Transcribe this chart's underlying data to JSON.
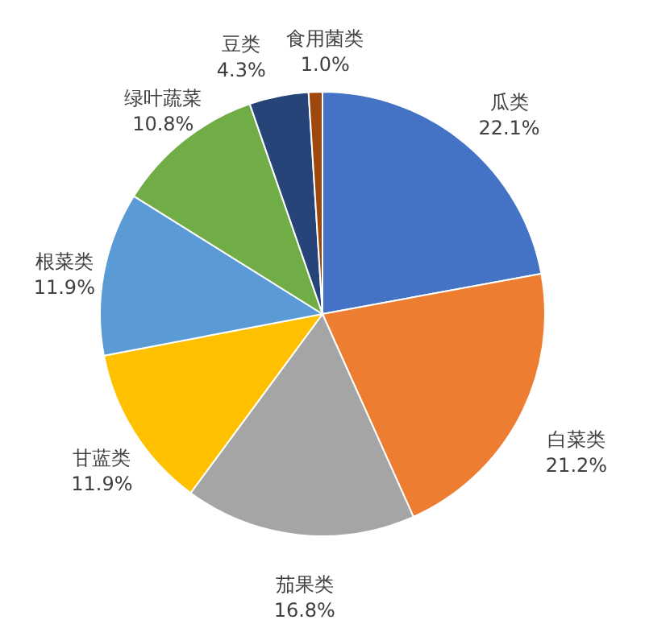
{
  "chart_data": {
    "type": "pie",
    "categories": [
      "瓜类",
      "白菜类",
      "茄果类",
      "甘蓝类",
      "根菜类",
      "绿叶蔬菜",
      "豆类",
      "食用菌类"
    ],
    "values": [
      22.1,
      21.2,
      16.8,
      11.9,
      11.9,
      10.8,
      4.3,
      1.0
    ],
    "value_labels": [
      "22.1%",
      "21.2%",
      "16.8%",
      "11.9%",
      "11.9%",
      "10.8%",
      "4.3%",
      "1.0%"
    ],
    "colors": [
      "#4472c4",
      "#ed7d31",
      "#a5a5a5",
      "#ffc000",
      "#5b9bd5",
      "#70ad47",
      "#264478",
      "#9e480e"
    ]
  }
}
